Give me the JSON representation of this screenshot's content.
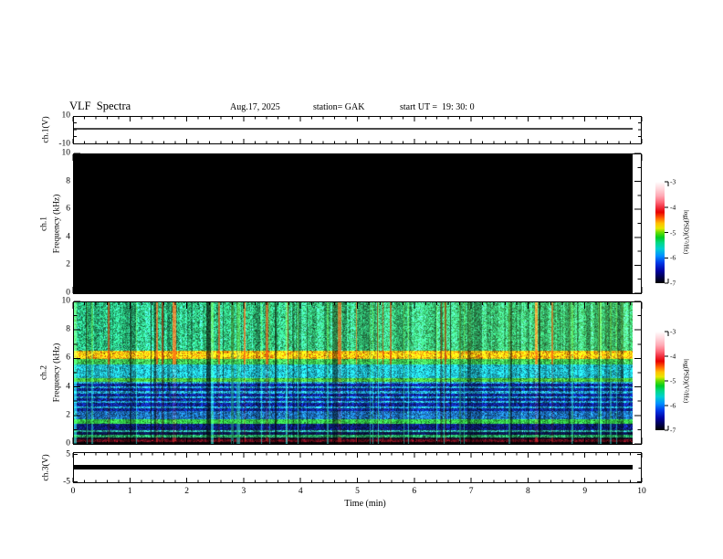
{
  "header": {
    "title": "VLF Spectra",
    "date": "Aug.17, 2025",
    "station": "station= GAK",
    "start_ut": "start UT =  19: 30: 0"
  },
  "panels": {
    "ch1_volt": {
      "axis_label": "ch.1(V)",
      "y_tick_labels": [
        "10",
        "-10"
      ]
    },
    "ch1_spec": {
      "axis_label_ch": "ch.1",
      "axis_label_freq": "Frequency (kHz)",
      "y_tick_labels": [
        "10",
        "8",
        "6",
        "4",
        "2",
        "0"
      ]
    },
    "ch2_spec": {
      "axis_label_ch": "ch.2",
      "axis_label_freq": "Frequency (kHz)",
      "y_tick_labels": [
        "10",
        "8",
        "6",
        "4",
        "2",
        "0"
      ]
    },
    "ch3_volt": {
      "axis_label": "ch.3(V)",
      "y_tick_labels": [
        "5",
        "-5"
      ]
    }
  },
  "xaxis": {
    "label": "Time (min)",
    "tick_labels": [
      "0",
      "1",
      "2",
      "3",
      "4",
      "5",
      "6",
      "7",
      "8",
      "9",
      "10"
    ]
  },
  "colorbar": {
    "title": "log(PSD)(V²/Hz)",
    "tick_labels": [
      "-3",
      "-4",
      "-5",
      "-6",
      "-7"
    ],
    "value_range_log": [
      -3,
      -7
    ],
    "gradient_top_to_bottom": [
      {
        "c": "#ffffff",
        "p": 0
      },
      {
        "c": "#ffd6db",
        "p": 7
      },
      {
        "c": "#ffa8b4",
        "p": 14
      },
      {
        "c": "#ff6a7a",
        "p": 20
      },
      {
        "c": "#f03040",
        "p": 25
      },
      {
        "c": "#e80000",
        "p": 30
      },
      {
        "c": "#ff6600",
        "p": 36
      },
      {
        "c": "#ffc000",
        "p": 41
      },
      {
        "c": "#e8e800",
        "p": 46
      },
      {
        "c": "#66dd00",
        "p": 50
      },
      {
        "c": "#00cc22",
        "p": 55
      },
      {
        "c": "#00d884",
        "p": 60
      },
      {
        "c": "#00d0d0",
        "p": 66
      },
      {
        "c": "#0090ff",
        "p": 73
      },
      {
        "c": "#0038e8",
        "p": 80
      },
      {
        "c": "#0000a0",
        "p": 88
      },
      {
        "c": "#000040",
        "p": 95
      },
      {
        "c": "#000000",
        "p": 100
      }
    ]
  },
  "chart_data": [
    {
      "type": "line",
      "panel": "ch.1 voltage",
      "ylabel": "ch.1(V)",
      "y_range": [
        -10,
        10
      ],
      "x_range_min": [
        0,
        10
      ],
      "xlabel": "Time (min)",
      "data_extent_min": 9.83,
      "series": [
        {
          "name": "ch.1(V)",
          "description": "flat quiescent trace at ~0 V for the whole record",
          "approx_value_v": 0
        }
      ]
    },
    {
      "type": "heatmap",
      "panel": "ch.1 spectrogram",
      "ylabel": "ch.1 Frequency (kHz)",
      "y_range_khz": [
        0,
        10
      ],
      "x_range_min": [
        0,
        10
      ],
      "data_extent_min": 9.83,
      "color_scale": {
        "label": "log(PSD)(V²/Hz)",
        "range": [
          -7,
          -3
        ]
      },
      "description": "uniform black panel: PSD at or below -7 everywhere (no signal on channel 1)"
    },
    {
      "type": "heatmap",
      "panel": "ch.2 spectrogram",
      "ylabel": "ch.2 Frequency (kHz)",
      "y_range_khz": [
        0,
        10
      ],
      "x_range_min": [
        0,
        10
      ],
      "data_extent_min": 9.83,
      "color_scale": {
        "label": "log(PSD)(V²/Hz)",
        "range": [
          -7,
          -3
        ]
      },
      "bands": [
        {
          "f_lo": 0.0,
          "f_hi": 0.15,
          "psd_log": -7.0,
          "rgb": [
            3,
            3,
            8
          ],
          "noise": 0.3
        },
        {
          "f_lo": 0.15,
          "f_hi": 0.3,
          "psd_log": -6.6,
          "rgb": [
            92,
            12,
            24
          ],
          "noise": 0.55
        },
        {
          "f_lo": 0.3,
          "f_hi": 0.45,
          "psd_log": -6.9,
          "rgb": [
            22,
            10,
            34
          ],
          "noise": 0.6
        },
        {
          "f_lo": 0.45,
          "f_hi": 0.62,
          "psd_log": -5.4,
          "rgb": [
            36,
            165,
            95
          ],
          "noise": 0.5
        },
        {
          "f_lo": 0.62,
          "f_hi": 0.85,
          "psd_log": -6.6,
          "rgb": [
            10,
            20,
            75
          ],
          "noise": 0.5
        },
        {
          "f_lo": 0.85,
          "f_hi": 1.0,
          "psd_log": -5.6,
          "rgb": [
            40,
            170,
            150
          ],
          "noise": 0.45
        },
        {
          "f_lo": 1.0,
          "f_hi": 1.45,
          "psd_log": -6.5,
          "rgb": [
            12,
            28,
            115
          ],
          "noise": 0.55
        },
        {
          "f_lo": 1.45,
          "f_hi": 1.75,
          "psd_log": -5.0,
          "rgb": [
            52,
            205,
            72
          ],
          "noise": 0.35
        },
        {
          "f_lo": 1.75,
          "f_hi": 2.35,
          "psd_log": -5.7,
          "rgb": [
            28,
            112,
            192
          ],
          "noise": 0.5
        },
        {
          "f_lo": 2.35,
          "f_hi": 4.4,
          "psd_log": -6.3,
          "rgb": [
            14,
            36,
            152
          ],
          "noise": 0.55,
          "stripes_khz": [
            2.6,
            2.95,
            3.3,
            3.65,
            4.0,
            4.3
          ]
        },
        {
          "f_lo": 4.4,
          "f_hi": 4.65,
          "psd_log": -5.0,
          "rgb": [
            72,
            200,
            62
          ],
          "noise": 0.35
        },
        {
          "f_lo": 4.65,
          "f_hi": 5.6,
          "psd_log": -5.5,
          "rgb": [
            32,
            192,
            212
          ],
          "noise": 0.4
        },
        {
          "f_lo": 5.6,
          "f_hi": 6.0,
          "psd_log": -5.0,
          "rgb": [
            62,
            205,
            82
          ],
          "noise": 0.4
        },
        {
          "f_lo": 6.0,
          "f_hi": 6.6,
          "psd_log": -4.2,
          "rgb": [
            238,
            172,
            24
          ],
          "noise": 0.5,
          "hiss": true
        },
        {
          "f_lo": 6.6,
          "f_hi": 10.0,
          "psd_log": -5.2,
          "rgb": [
            42,
            200,
            132
          ],
          "noise": 0.5,
          "streaky": true
        }
      ],
      "features": [
        "dense vertical sferic streaks across all frequencies",
        "bright yellow/orange/red hiss band near 6-6.5 kHz",
        "thin red vertical sferic lines, strongest above ~5.6 kHz",
        "dark-blue dropout columns scattered through the record",
        "bright green band near 1.5-1.75 kHz",
        "dark maroon line near 0.2-0.3 kHz",
        "black below ~0.15 kHz"
      ]
    },
    {
      "type": "line",
      "panel": "ch.3 voltage",
      "ylabel": "ch.3(V)",
      "y_range": [
        -5.6,
        5.6
      ],
      "x_range_min": [
        0,
        10
      ],
      "data_extent_min": 9.83,
      "series": [
        {
          "name": "ch.3(V)",
          "description": "thick flat saturated-looking trace at ~0 V (±0.4 V) for the whole record",
          "approx_value_v": 0
        }
      ]
    }
  ]
}
